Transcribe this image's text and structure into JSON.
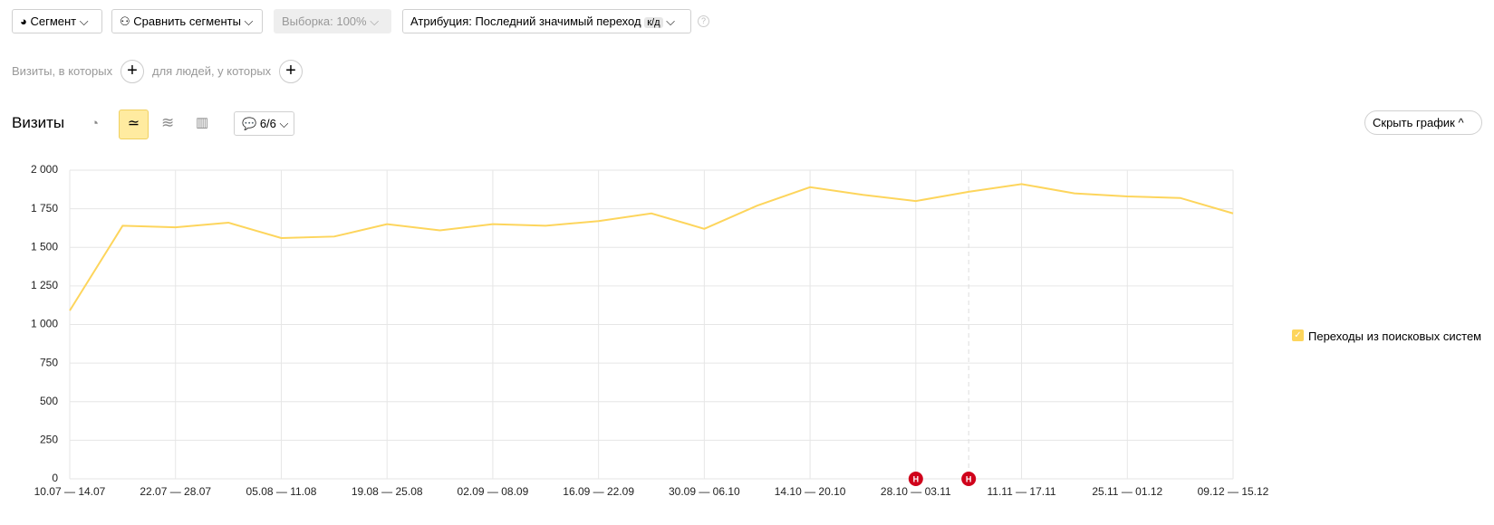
{
  "toolbar": {
    "segment": "Сегмент",
    "compare": "Сравнить сегменты",
    "sample": "Выборка: 100%",
    "attribution": "Атрибуция: Последний значимый переход",
    "attribution_badge": "к/д"
  },
  "filters": {
    "visits_where": "Визиты, в которых",
    "people_where": "для людей, у которых"
  },
  "panel": {
    "title": "Визиты",
    "notes": "6/6",
    "hide_chart": "Скрыть график"
  },
  "chart_data": {
    "type": "line",
    "categories": [
      "10.07 — 14.07",
      null,
      "22.07 — 28.07",
      null,
      "05.08 — 11.08",
      null,
      "19.08 — 25.08",
      null,
      "02.09 — 08.09",
      null,
      "16.09 — 22.09",
      null,
      "30.09 — 06.10",
      null,
      "14.10 — 20.10",
      null,
      "28.10 — 03.11",
      null,
      "11.11 — 17.11",
      null,
      "25.11 — 01.12",
      null,
      "09.12 — 15.12"
    ],
    "series": [
      {
        "name": "Переходы из поисковых систем",
        "color": "#fdd55c",
        "values": [
          1090,
          1640,
          1630,
          1660,
          1560,
          1570,
          1650,
          1610,
          1650,
          1640,
          1670,
          1720,
          1620,
          1770,
          1890,
          1840,
          1800,
          1860,
          1910,
          1850,
          1830,
          1820,
          1720
        ]
      }
    ],
    "ylim": [
      0,
      2000
    ],
    "yticks": [
      0,
      250,
      500,
      750,
      {
        "value": 1000,
        "label": "1 000"
      },
      {
        "value": 1250,
        "label": "1 250"
      },
      {
        "value": 1500,
        "label": "1 500"
      },
      {
        "value": 1750,
        "label": "1 750"
      },
      {
        "value": 2000,
        "label": "2 000"
      }
    ],
    "grid": true,
    "annotations": [
      "Н",
      "Н"
    ]
  }
}
